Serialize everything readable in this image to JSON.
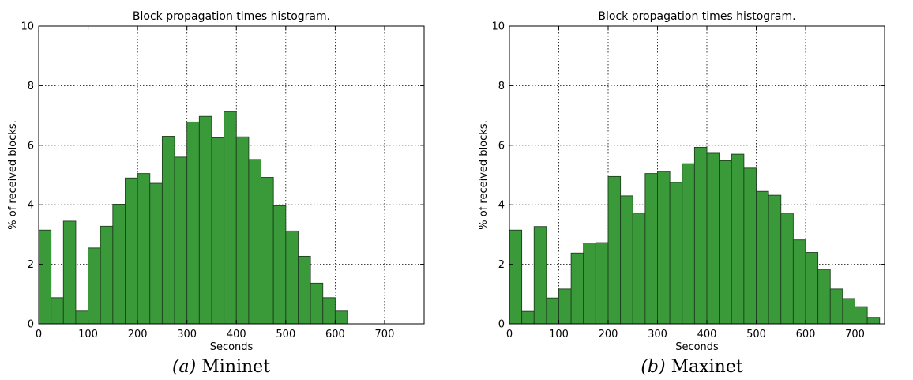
{
  "chart_data": [
    {
      "type": "bar",
      "title": "Block propagation times histogram.",
      "xlabel": "Seconds",
      "ylabel": "% of received blocks.",
      "xlim": [
        0,
        780
      ],
      "ylim": [
        0,
        10
      ],
      "xticks": [
        0,
        100,
        200,
        300,
        400,
        500,
        600,
        700
      ],
      "yticks": [
        0,
        2,
        4,
        6,
        8,
        10
      ],
      "grid": true,
      "bin_width": 25,
      "bar_color": "#3a9a3a",
      "bins": [
        {
          "x0": 0,
          "value": 3.15
        },
        {
          "x0": 25,
          "value": 0.88
        },
        {
          "x0": 50,
          "value": 3.45
        },
        {
          "x0": 75,
          "value": 0.43
        },
        {
          "x0": 100,
          "value": 2.55
        },
        {
          "x0": 125,
          "value": 3.28
        },
        {
          "x0": 150,
          "value": 4.02
        },
        {
          "x0": 175,
          "value": 4.9
        },
        {
          "x0": 200,
          "value": 5.05
        },
        {
          "x0": 225,
          "value": 4.72
        },
        {
          "x0": 250,
          "value": 6.3
        },
        {
          "x0": 275,
          "value": 5.6
        },
        {
          "x0": 300,
          "value": 6.78
        },
        {
          "x0": 325,
          "value": 6.97
        },
        {
          "x0": 350,
          "value": 6.25
        },
        {
          "x0": 375,
          "value": 7.12
        },
        {
          "x0": 400,
          "value": 6.28
        },
        {
          "x0": 425,
          "value": 5.52
        },
        {
          "x0": 450,
          "value": 4.92
        },
        {
          "x0": 475,
          "value": 3.97
        },
        {
          "x0": 500,
          "value": 3.12
        },
        {
          "x0": 525,
          "value": 2.27
        },
        {
          "x0": 550,
          "value": 1.37
        },
        {
          "x0": 575,
          "value": 0.88
        },
        {
          "x0": 600,
          "value": 0.43
        }
      ]
    },
    {
      "type": "bar",
      "title": "Block propagation times histogram.",
      "xlabel": "Seconds",
      "ylabel": "% of received blocks.",
      "xlim": [
        0,
        760
      ],
      "ylim": [
        0,
        10
      ],
      "xticks": [
        0,
        100,
        200,
        300,
        400,
        500,
        600,
        700
      ],
      "yticks": [
        0,
        2,
        4,
        6,
        8,
        10
      ],
      "grid": true,
      "bin_width": 25,
      "bar_color": "#3a9a3a",
      "bins": [
        {
          "x0": 0,
          "value": 3.15
        },
        {
          "x0": 25,
          "value": 0.42
        },
        {
          "x0": 50,
          "value": 3.27
        },
        {
          "x0": 75,
          "value": 0.87
        },
        {
          "x0": 100,
          "value": 1.17
        },
        {
          "x0": 125,
          "value": 2.38
        },
        {
          "x0": 150,
          "value": 2.72
        },
        {
          "x0": 175,
          "value": 2.73
        },
        {
          "x0": 200,
          "value": 4.95
        },
        {
          "x0": 225,
          "value": 4.3
        },
        {
          "x0": 250,
          "value": 3.72
        },
        {
          "x0": 275,
          "value": 5.05
        },
        {
          "x0": 300,
          "value": 5.12
        },
        {
          "x0": 325,
          "value": 4.75
        },
        {
          "x0": 350,
          "value": 5.38
        },
        {
          "x0": 375,
          "value": 5.93
        },
        {
          "x0": 400,
          "value": 5.73
        },
        {
          "x0": 425,
          "value": 5.48
        },
        {
          "x0": 450,
          "value": 5.7
        },
        {
          "x0": 475,
          "value": 5.23
        },
        {
          "x0": 500,
          "value": 4.45
        },
        {
          "x0": 525,
          "value": 4.32
        },
        {
          "x0": 550,
          "value": 3.72
        },
        {
          "x0": 575,
          "value": 2.82
        },
        {
          "x0": 600,
          "value": 2.4
        },
        {
          "x0": 625,
          "value": 1.83
        },
        {
          "x0": 650,
          "value": 1.17
        },
        {
          "x0": 675,
          "value": 0.85
        },
        {
          "x0": 700,
          "value": 0.58
        },
        {
          "x0": 725,
          "value": 0.22
        }
      ]
    }
  ],
  "captions": [
    {
      "label": "(a)",
      "text": "Mininet"
    },
    {
      "label": "(b)",
      "text": "Maxinet"
    }
  ]
}
